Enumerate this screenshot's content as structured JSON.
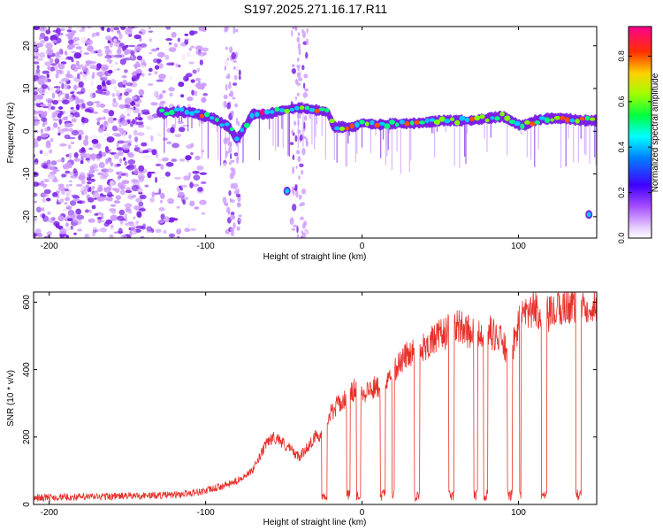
{
  "figure_title": "S197.2025.271.16.17.R11",
  "chart_data": [
    {
      "type": "heatmap",
      "title": "S197.2025.271.16.17.R11",
      "xlabel": "Height of straight line (km)",
      "ylabel": "Frequency (Hz)",
      "xlim": [
        -210,
        150
      ],
      "ylim": [
        -25,
        24.5
      ],
      "xticks": [
        -200,
        -100,
        0,
        100
      ],
      "yticks": [
        -20,
        -10,
        0,
        10,
        20
      ],
      "colorbar": {
        "label": "Normalized spectral amplitude",
        "range": [
          0,
          0.93
        ],
        "ticks": [
          0.0,
          0.2,
          0.4,
          0.6,
          0.8
        ],
        "colors": [
          "#f2e6fa",
          "#cc99ff",
          "#7a1fe6",
          "#2020ff",
          "#00c8ff",
          "#00ff80",
          "#80ff00",
          "#ffd000",
          "#ff5000",
          "#ff0080"
        ]
      },
      "ridge_trace": {
        "x": [
          -128,
          -110,
          -95,
          -85,
          -80,
          -70,
          -60,
          -50,
          -40,
          -30,
          -22,
          -18,
          -12,
          -5,
          0,
          10,
          20,
          30,
          40,
          50,
          60,
          70,
          80,
          90,
          95,
          100,
          105,
          110,
          120,
          130,
          140,
          150
        ],
        "frequency": [
          4.5,
          4.5,
          3,
          1,
          -2,
          4,
          4,
          5,
          5.5,
          5,
          4.5,
          1,
          1,
          1,
          2,
          1.5,
          1.8,
          1.8,
          2,
          2.5,
          2.5,
          2.5,
          3,
          3.5,
          2.5,
          1.5,
          1.5,
          2.5,
          3,
          3,
          2.5,
          2.5
        ]
      },
      "features": [
        {
          "label": "noise scatter",
          "x_range": [
            -210,
            -120
          ],
          "frequency_range": [
            -25,
            24.5
          ]
        },
        {
          "label": "feature near -50 km",
          "x": -48,
          "frequency": -14
        },
        {
          "label": "feature near 145 km",
          "x": 145,
          "frequency": -19.5
        }
      ]
    },
    {
      "type": "line",
      "xlabel": "Height of straight line (km)",
      "ylabel": "SNR (10 * v/v)",
      "xlim": [
        -210,
        150
      ],
      "ylim": [
        0,
        630
      ],
      "xticks": [
        -200,
        -100,
        0,
        100
      ],
      "yticks": [
        0,
        200,
        400,
        600
      ],
      "series": [
        {
          "name": "SNR",
          "color": "#e8302a",
          "x": [
            -210,
            -180,
            -150,
            -120,
            -100,
            -85,
            -80,
            -70,
            -60,
            -55,
            -50,
            -45,
            -40,
            -35,
            -30,
            -25,
            -20,
            -15,
            -10,
            -5,
            0,
            10,
            20,
            30,
            40,
            50,
            60,
            70,
            80,
            90,
            95,
            100,
            110,
            120,
            130,
            140,
            150
          ],
          "values": [
            20,
            22,
            25,
            28,
            40,
            60,
            70,
            100,
            190,
            200,
            180,
            160,
            140,
            170,
            200,
            210,
            270,
            300,
            310,
            340,
            330,
            350,
            400,
            450,
            470,
            500,
            530,
            510,
            520,
            480,
            430,
            540,
            580,
            560,
            590,
            600,
            590
          ]
        }
      ],
      "dropout_to_baseline": true
    }
  ]
}
